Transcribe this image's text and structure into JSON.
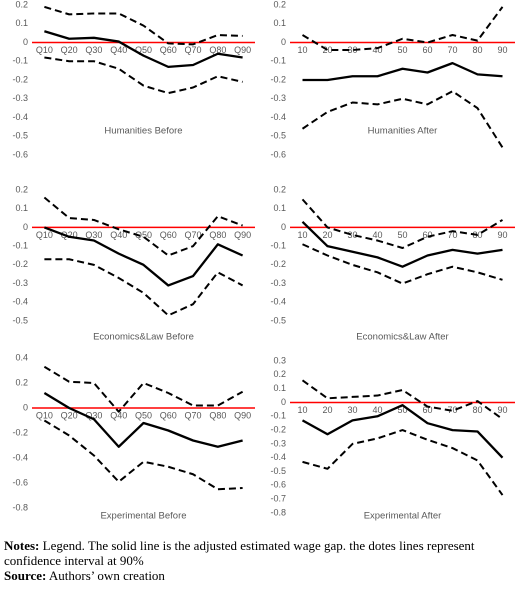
{
  "chart_data": [
    {
      "type": "line",
      "title": "Humanities Before",
      "categories": [
        "Q10",
        "Q20",
        "Q30",
        "Q40",
        "Q50",
        "Q60",
        "Q70",
        "Q80",
        "Q90"
      ],
      "ylim": [
        -0.6,
        0.2
      ],
      "yticks": [
        0.2,
        0.1,
        0,
        -0.1,
        -0.2,
        -0.3,
        -0.4,
        -0.5,
        -0.6
      ],
      "grid": false,
      "zero_line_color": "#ff0000",
      "series": [
        {
          "style": "dashed",
          "color": "#000000",
          "values": [
            0.19,
            0.15,
            0.155,
            0.155,
            0.09,
            -0.005,
            -0.01,
            0.04,
            0.035
          ]
        },
        {
          "style": "solid",
          "color": "#000000",
          "values": [
            0.06,
            0.02,
            0.025,
            0.005,
            -0.07,
            -0.13,
            -0.12,
            -0.06,
            -0.08
          ]
        },
        {
          "style": "dashed",
          "color": "#000000",
          "values": [
            -0.08,
            -0.1,
            -0.1,
            -0.14,
            -0.23,
            -0.27,
            -0.24,
            -0.18,
            -0.21
          ]
        }
      ]
    },
    {
      "type": "line",
      "title": "Humanities After",
      "categories": [
        "10",
        "20",
        "30",
        "40",
        "50",
        "60",
        "70",
        "80",
        "90"
      ],
      "ylim": [
        -0.6,
        0.2
      ],
      "yticks": [
        0.2,
        0.1,
        0,
        -0.1,
        -0.2,
        -0.3,
        -0.4,
        -0.5,
        -0.6
      ],
      "grid": false,
      "zero_line_color": "#ff0000",
      "series": [
        {
          "style": "dashed",
          "color": "#000000",
          "values": [
            0.04,
            -0.04,
            -0.04,
            -0.03,
            0.02,
            0.0,
            0.04,
            0.01,
            0.19
          ]
        },
        {
          "style": "solid",
          "color": "#000000",
          "values": [
            -0.2,
            -0.2,
            -0.18,
            -0.18,
            -0.14,
            -0.16,
            -0.11,
            -0.17,
            -0.18
          ]
        },
        {
          "style": "dashed",
          "color": "#000000",
          "values": [
            -0.46,
            -0.37,
            -0.32,
            -0.33,
            -0.3,
            -0.33,
            -0.26,
            -0.35,
            -0.56
          ]
        }
      ]
    },
    {
      "type": "line",
      "title": "Economics&Law Before",
      "categories": [
        "Q10",
        "Q20",
        "Q30",
        "Q40",
        "Q50",
        "Q60",
        "Q70",
        "Q80",
        "Q90"
      ],
      "ylim": [
        -0.5,
        0.2
      ],
      "yticks": [
        0.2,
        0.1,
        0,
        -0.1,
        -0.2,
        -0.3,
        -0.4,
        -0.5
      ],
      "grid": false,
      "zero_line_color": "#ff0000",
      "series": [
        {
          "style": "dashed",
          "color": "#000000",
          "values": [
            0.16,
            0.05,
            0.04,
            -0.01,
            -0.05,
            -0.15,
            -0.1,
            0.06,
            0.01
          ]
        },
        {
          "style": "solid",
          "color": "#000000",
          "values": [
            0.0,
            -0.05,
            -0.07,
            -0.14,
            -0.2,
            -0.31,
            -0.26,
            -0.09,
            -0.15
          ]
        },
        {
          "style": "dashed",
          "color": "#000000",
          "values": [
            -0.17,
            -0.17,
            -0.2,
            -0.27,
            -0.35,
            -0.47,
            -0.41,
            -0.24,
            -0.31
          ]
        }
      ]
    },
    {
      "type": "line",
      "title": "Economics&Law After",
      "categories": [
        "10",
        "20",
        "30",
        "40",
        "50",
        "60",
        "70",
        "80",
        "90"
      ],
      "ylim": [
        -0.5,
        0.2
      ],
      "yticks": [
        0.2,
        0.1,
        0,
        -0.1,
        -0.2,
        -0.3,
        -0.4,
        -0.5
      ],
      "grid": false,
      "zero_line_color": "#ff0000",
      "series": [
        {
          "style": "dashed",
          "color": "#000000",
          "values": [
            0.15,
            0.0,
            -0.04,
            -0.07,
            -0.11,
            -0.05,
            -0.02,
            -0.04,
            0.04
          ]
        },
        {
          "style": "solid",
          "color": "#000000",
          "values": [
            0.03,
            -0.1,
            -0.13,
            -0.16,
            -0.21,
            -0.15,
            -0.12,
            -0.14,
            -0.12
          ]
        },
        {
          "style": "dashed",
          "color": "#000000",
          "values": [
            -0.09,
            -0.15,
            -0.2,
            -0.24,
            -0.3,
            -0.25,
            -0.21,
            -0.24,
            -0.28
          ]
        }
      ]
    },
    {
      "type": "line",
      "title": "Experimental Before",
      "categories": [
        "Q10",
        "Q20",
        "Q30",
        "Q40",
        "Q50",
        "Q60",
        "Q70",
        "Q80",
        "Q90"
      ],
      "ylim": [
        -0.8,
        0.4
      ],
      "yticks": [
        0.4,
        0.2,
        0,
        -0.2,
        -0.4,
        -0.6,
        -0.8
      ],
      "grid": false,
      "zero_line_color": "#ff0000",
      "series": [
        {
          "style": "dashed",
          "color": "#000000",
          "values": [
            0.33,
            0.21,
            0.2,
            -0.03,
            0.2,
            0.12,
            0.02,
            0.02,
            0.13
          ]
        },
        {
          "style": "solid",
          "color": "#000000",
          "values": [
            0.12,
            0.0,
            -0.09,
            -0.31,
            -0.12,
            -0.18,
            -0.26,
            -0.31,
            -0.26
          ]
        },
        {
          "style": "dashed",
          "color": "#000000",
          "values": [
            -0.1,
            -0.22,
            -0.38,
            -0.59,
            -0.43,
            -0.47,
            -0.53,
            -0.65,
            -0.64
          ]
        }
      ]
    },
    {
      "type": "line",
      "title": "Experimental After",
      "categories": [
        "10",
        "20",
        "30",
        "40",
        "50",
        "60",
        "70",
        "80",
        "90"
      ],
      "ylim": [
        -0.8,
        0.3
      ],
      "yticks": [
        0.3,
        0.2,
        0.1,
        0,
        -0.1,
        -0.2,
        -0.3,
        -0.4,
        -0.5,
        -0.6,
        -0.7,
        -0.8
      ],
      "grid": false,
      "zero_line_color": "#ff0000",
      "series": [
        {
          "style": "dashed",
          "color": "#000000",
          "values": [
            0.16,
            0.03,
            0.04,
            0.05,
            0.09,
            -0.03,
            -0.06,
            0.01,
            -0.12
          ]
        },
        {
          "style": "solid",
          "color": "#000000",
          "values": [
            -0.13,
            -0.23,
            -0.13,
            -0.1,
            -0.02,
            -0.15,
            -0.2,
            -0.21,
            -0.4
          ]
        },
        {
          "style": "dashed",
          "color": "#000000",
          "values": [
            -0.43,
            -0.48,
            -0.3,
            -0.26,
            -0.2,
            -0.27,
            -0.33,
            -0.42,
            -0.67
          ]
        }
      ]
    }
  ],
  "notes": {
    "label": "Notes:",
    "text": "Legend. The solid line is the adjusted estimated wage gap. the dotes lines represent confidence interval at 90%"
  },
  "source": {
    "label": "Source:",
    "text": "Authors’ own creation"
  }
}
